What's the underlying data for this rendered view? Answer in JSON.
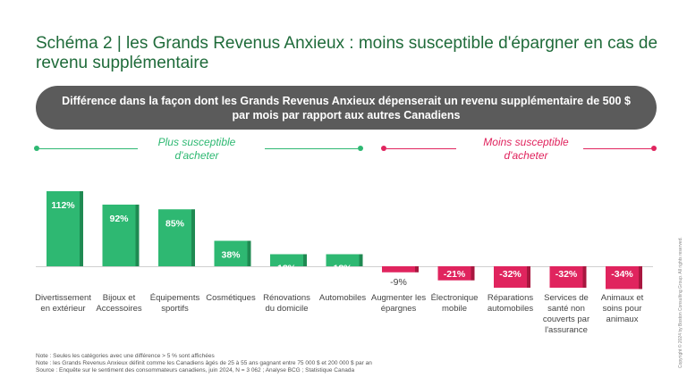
{
  "title": "Schéma 2 | les Grands Revenus Anxieux : moins susceptible d'épargner en cas de revenu supplémentaire",
  "banner": "Différence dans la façon dont les Grands Revenus Anxieux dépenserait un revenu supplémentaire de 500 $ par mois par rapport aux autres Canadiens",
  "segments": {
    "positive": "Plus susceptible d'acheter",
    "negative": "Moins susceptible d'acheter"
  },
  "colors": {
    "positive": "#2eb872",
    "negative": "#e0245e",
    "title": "#1f6b3a"
  },
  "chart_data": {
    "type": "bar",
    "categories": [
      "Divertissement en extérieur",
      "Bijoux et Accessoires",
      "Équipements sportifs",
      "Cosmétiques",
      "Rénovations du domicile",
      "Automobiles",
      "Augmenter les épargnes",
      "Électronique mobile",
      "Réparations automobiles",
      "Services de santé non couverts par l'assurance",
      "Animaux et soins pour animaux"
    ],
    "values": [
      112,
      92,
      85,
      38,
      18,
      18,
      -9,
      -21,
      -32,
      -32,
      -34
    ],
    "value_labels": [
      "112%",
      "92%",
      "85%",
      "38%",
      "18%",
      "18%",
      "-9%",
      "-21%",
      "-32%",
      "-32%",
      "-34%"
    ],
    "unit": "%",
    "grid": false
  },
  "notes": [
    "Note : Seules les catégories avec une différence > 5 % sont affichées",
    "Note : les Grands Revenus Anxieux définit comme les Canadiens âgés de 25 à 55 ans gagnant entre 75 000 $ et 200 000 $ par an",
    "Source : Enquête sur le sentiment des consommateurs canadiens, juin 2024, N = 3 062 ; Analyse BCG ; Statistique Canada"
  ],
  "copyright": "Copyright © 2024 by Boston Consulting Group. All rights reserved."
}
